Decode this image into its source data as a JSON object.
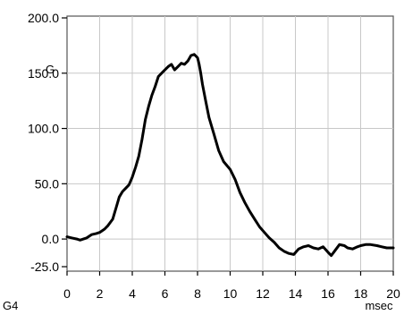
{
  "chart_data": {
    "type": "line",
    "panel_label": "G4",
    "xlabel": "msec",
    "ylabel": "G",
    "xlim": [
      0,
      20
    ],
    "ylim": [
      -25,
      200
    ],
    "x_ticks": [
      "0",
      "2",
      "4",
      "6",
      "8",
      "10",
      "12",
      "14",
      "16",
      "18",
      "20"
    ],
    "y_ticks": [
      "200.0",
      "150.0",
      "100.0",
      "50.0",
      "0.0",
      "-25.0"
    ],
    "grid": true,
    "line_color": "#000000",
    "series": [
      {
        "x": [
          0,
          0.3,
          0.6,
          0.8,
          1.0,
          1.2,
          1.5,
          1.8,
          2.0,
          2.3,
          2.5,
          2.8,
          3.0,
          3.2,
          3.4,
          3.6,
          3.8,
          4.0,
          4.2,
          4.4,
          4.6,
          4.8,
          5.0,
          5.2,
          5.4,
          5.6,
          5.8,
          6.0,
          6.2,
          6.4,
          6.6,
          6.8,
          7.0,
          7.2,
          7.4,
          7.6,
          7.8,
          8.0,
          8.1,
          8.2,
          8.3,
          8.5,
          8.7,
          9.0,
          9.3,
          9.6,
          10.0,
          10.3,
          10.6,
          10.9,
          11.2,
          11.5,
          11.8,
          12.1,
          12.4,
          12.7,
          13.0,
          13.3,
          13.6,
          13.9,
          14.2,
          14.5,
          14.8,
          15.1,
          15.4,
          15.7,
          16.0,
          16.2,
          16.4,
          16.7,
          17.0,
          17.2,
          17.5,
          17.8,
          18.0,
          18.3,
          18.6,
          19.0,
          19.3,
          19.6,
          20.0
        ],
        "y": [
          2,
          1,
          0,
          -1,
          0,
          1,
          4,
          5,
          6,
          9,
          12,
          18,
          28,
          38,
          43,
          46,
          49,
          56,
          65,
          75,
          90,
          108,
          120,
          130,
          138,
          147,
          150,
          153,
          156,
          158,
          153,
          156,
          159,
          158,
          161,
          166,
          167,
          164,
          158,
          150,
          140,
          125,
          110,
          95,
          80,
          70,
          63,
          54,
          42,
          33,
          25,
          18,
          11,
          6,
          1,
          -3,
          -8,
          -11,
          -13,
          -14,
          -9,
          -7,
          -6,
          -8,
          -9,
          -7,
          -12,
          -15,
          -11,
          -5,
          -6,
          -8,
          -9,
          -7,
          -6,
          -5,
          -5,
          -6,
          -7,
          -8,
          -8
        ]
      }
    ]
  }
}
